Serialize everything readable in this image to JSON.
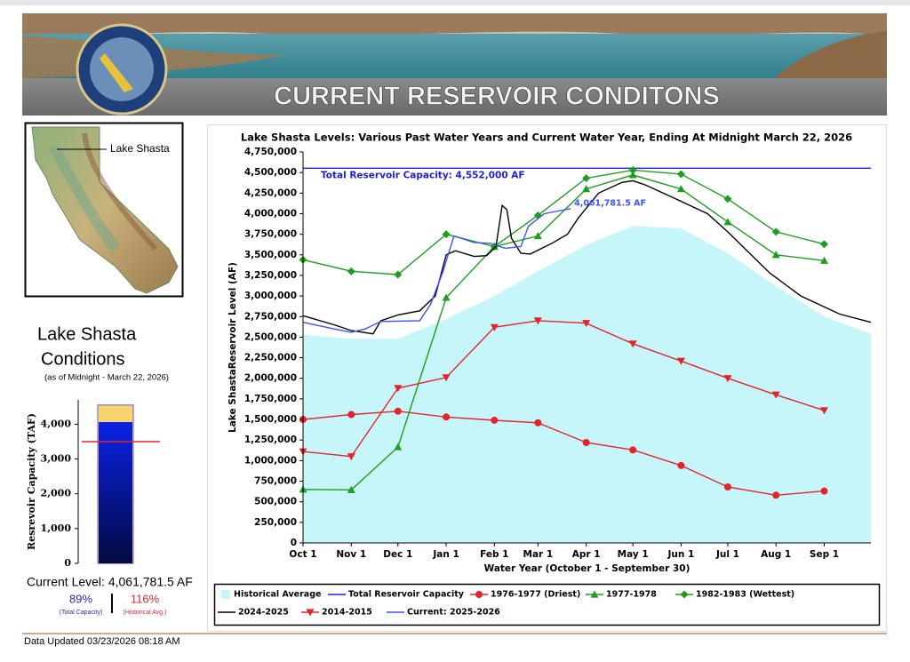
{
  "header": {
    "title": "CURRENT RESERVOIR CONDITONS"
  },
  "map": {
    "label": "Lake Shasta"
  },
  "conditions": {
    "title_line1": "Lake Shasta",
    "title_line2": "Conditions",
    "as_of": "(as of Midnight - March 22, 2026)",
    "current_level": "Current Level: 4,061,781.5 AF",
    "capacity_percent": "89%",
    "capacity_caption": "(Total Capacity)",
    "historical_percent": "116%",
    "historical_caption": "(Historical Avg.)"
  },
  "footer": {
    "updated": "Data Updated 03/23/2026 08:18 AM"
  },
  "chart_data": [
    {
      "type": "line",
      "title": "Lake Shasta Levels: Various Past Water Years and Current Water Year, Ending At Midnight March 22, 2026",
      "x_label": "Water Year (October 1 - September 30)",
      "y_label": "Lake ShastaReservoir Level (AF)",
      "xlim": [
        0,
        365
      ],
      "xticks": [
        {
          "value": 0,
          "label": "Oct 1"
        },
        {
          "value": 31,
          "label": "Nov 1"
        },
        {
          "value": 61,
          "label": "Dec 1"
        },
        {
          "value": 92,
          "label": "Jan 1"
        },
        {
          "value": 123,
          "label": "Feb 1"
        },
        {
          "value": 151,
          "label": "Mar 1"
        },
        {
          "value": 182,
          "label": "Apr 1"
        },
        {
          "value": 212,
          "label": "May 1"
        },
        {
          "value": 243,
          "label": "Jun 1"
        },
        {
          "value": 273,
          "label": "Jul 1"
        },
        {
          "value": 304,
          "label": "Aug 1"
        },
        {
          "value": 335,
          "label": "Sep 1"
        }
      ],
      "ylim": [
        0,
        4750000
      ],
      "yticks": [
        0,
        {
          "value": 250000,
          "label": "250,000"
        },
        {
          "value": 500000,
          "label": "500,000"
        },
        {
          "value": 750000,
          "label": "750,000"
        },
        {
          "value": 1000000,
          "label": "1,000,000"
        },
        {
          "value": 1250000,
          "label": "1,250,000"
        },
        {
          "value": 1500000,
          "label": "1,500,000"
        },
        {
          "value": 1750000,
          "label": "1,750,000"
        },
        {
          "value": 2000000,
          "label": "2,000,000"
        },
        {
          "value": 2250000,
          "label": "2,250,000"
        },
        {
          "value": 2500000,
          "label": "2,500,000"
        },
        {
          "value": 2750000,
          "label": "2,750,000"
        },
        {
          "value": 3000000,
          "label": "3,000,000"
        },
        {
          "value": 3250000,
          "label": "3,250,000"
        },
        {
          "value": 3500000,
          "label": "3,500,000"
        },
        {
          "value": 3750000,
          "label": "3,750,000"
        },
        {
          "value": 4000000,
          "label": "4,000,000"
        },
        {
          "value": 4250000,
          "label": "4,250,000"
        },
        {
          "value": 4500000,
          "label": "4,500,000"
        },
        {
          "value": 4750000,
          "label": "4,750,000"
        }
      ],
      "capacity_label": "Total Reservoir Capacity: 4,552,000 AF",
      "current_label": "4,061,781.5 AF",
      "series": [
        {
          "name": "Historical Average",
          "kind": "area",
          "color": "#c6f6fa",
          "x": [
            0,
            31,
            61,
            92,
            123,
            151,
            182,
            212,
            243,
            273,
            304,
            335,
            365
          ],
          "values": [
            2530000,
            2480000,
            2480000,
            2720000,
            3000000,
            3300000,
            3620000,
            3850000,
            3820000,
            3520000,
            3120000,
            2750000,
            2540000
          ]
        },
        {
          "name": "Total Reservoir Capacity",
          "kind": "line",
          "color": "#1f1fd8",
          "x": [
            0,
            365
          ],
          "values": [
            4552000,
            4552000
          ]
        },
        {
          "name": "1976-1977 (Driest)",
          "kind": "line",
          "marker": "circle",
          "color": "#e3242b",
          "x": [
            0,
            31,
            61,
            92,
            123,
            151,
            182,
            212,
            243,
            273,
            304,
            335
          ],
          "values": [
            1500000,
            1560000,
            1600000,
            1530000,
            1490000,
            1460000,
            1220000,
            1130000,
            940000,
            680000,
            580000,
            630000
          ]
        },
        {
          "name": "1977-1978",
          "kind": "line",
          "marker": "triangle-up",
          "color": "#1e9e1e",
          "x": [
            0,
            31,
            61,
            92,
            123,
            151,
            182,
            212,
            243,
            273,
            304,
            335
          ],
          "values": [
            650000,
            645000,
            1165000,
            2980000,
            3600000,
            3730000,
            4300000,
            4470000,
            4300000,
            3900000,
            3500000,
            3430000
          ]
        },
        {
          "name": "1982-1983 (Wettest)",
          "kind": "line",
          "marker": "diamond",
          "color": "#1e9e1e",
          "x": [
            0,
            31,
            61,
            92,
            123,
            151,
            182,
            212,
            243,
            273,
            304,
            335
          ],
          "values": [
            3440000,
            3300000,
            3260000,
            3750000,
            3600000,
            3980000,
            4430000,
            4530000,
            4480000,
            4180000,
            3780000,
            3630000
          ]
        },
        {
          "name": "2024-2025",
          "kind": "line",
          "color": "#000000",
          "x": [
            0,
            20,
            31,
            45,
            50,
            61,
            75,
            85,
            92,
            98,
            110,
            118,
            124,
            128,
            131,
            134,
            140,
            146,
            160,
            170,
            177,
            190,
            205,
            212,
            220,
            243,
            260,
            273,
            300,
            320,
            345,
            365
          ],
          "values": [
            2760000,
            2650000,
            2580000,
            2540000,
            2700000,
            2770000,
            2820000,
            3000000,
            3500000,
            3550000,
            3480000,
            3490000,
            3600000,
            4100000,
            4050000,
            3700000,
            3520000,
            3510000,
            3640000,
            3750000,
            3950000,
            4250000,
            4380000,
            4400000,
            4350000,
            4150000,
            4000000,
            3780000,
            3280000,
            3000000,
            2780000,
            2680000
          ]
        },
        {
          "name": "2014-2015",
          "kind": "line",
          "marker": "triangle-down",
          "color": "#e3242b",
          "x": [
            0,
            31,
            61,
            92,
            123,
            151,
            182,
            212,
            243,
            273,
            304,
            335
          ],
          "values": [
            1110000,
            1050000,
            1880000,
            2010000,
            2620000,
            2700000,
            2670000,
            2420000,
            2210000,
            2000000,
            1800000,
            1610000
          ]
        },
        {
          "name": "Current: 2025-2026",
          "kind": "line",
          "color": "#3b52ff",
          "x": [
            0,
            20,
            31,
            40,
            50,
            75,
            82,
            90,
            97,
            110,
            120,
            130,
            140,
            145,
            155,
            172
          ],
          "values": [
            2680000,
            2600000,
            2560000,
            2600000,
            2690000,
            2700000,
            2900000,
            3300000,
            3730000,
            3650000,
            3640000,
            3580000,
            3600000,
            3850000,
            4000000,
            4061781.5
          ]
        }
      ]
    },
    {
      "type": "gauge",
      "y_label": "Resrevoir Capacity (TAF)",
      "ylim": [
        0,
        4700
      ],
      "yticks": [
        0,
        {
          "value": 1000,
          "label": "1,000"
        },
        {
          "value": 2000,
          "label": "2,000"
        },
        {
          "value": 3000,
          "label": "3,000"
        },
        {
          "value": 4000,
          "label": "4,000"
        }
      ],
      "capacity": 4552,
      "capacity_color": "#f7d46c",
      "level": 4061.7815,
      "level_color": "#0a1fd6",
      "historical_average": 3501,
      "historical_color": "#e3242b"
    }
  ]
}
